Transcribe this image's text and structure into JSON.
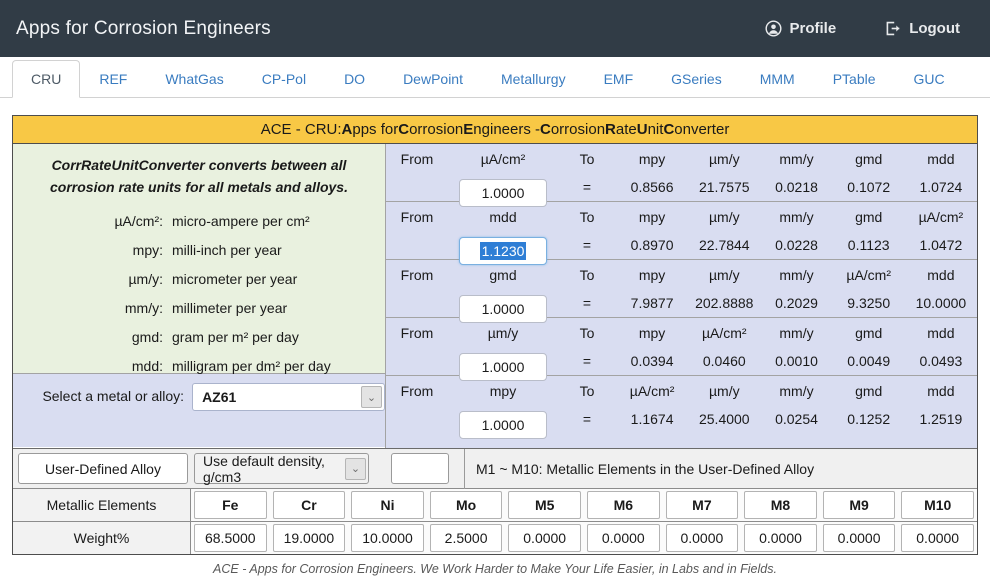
{
  "theme": {
    "header_bg": "#313c46",
    "tab_link_blue": "#3a7cc0",
    "title_gold": "#f8c845",
    "panel_green": "#e9f1df",
    "panel_lavender": "#d9ddf1",
    "selection_blue": "#2e7ed5",
    "focus_border": "#7ab0e0"
  },
  "header": {
    "app_title": "Apps for Corrosion Engineers",
    "profile_label": "Profile",
    "logout_label": "Logout"
  },
  "tabs": {
    "active": "CRU",
    "items": [
      "CRU",
      "REF",
      "WhatGas",
      "CP-Pol",
      "DO",
      "DewPoint",
      "Metallurgy",
      "EMF",
      "GSeries",
      "MMM",
      "PTable",
      "GUC"
    ]
  },
  "title_bar": {
    "segments": [
      {
        "t": "ACE - CRU: ",
        "b": false
      },
      {
        "t": "A",
        "b": true
      },
      {
        "t": "pps for ",
        "b": false
      },
      {
        "t": "C",
        "b": true
      },
      {
        "t": "orrosion ",
        "b": false
      },
      {
        "t": "E",
        "b": true
      },
      {
        "t": "ngineers - ",
        "b": false
      },
      {
        "t": "C",
        "b": true
      },
      {
        "t": "orrosion ",
        "b": false
      },
      {
        "t": "R",
        "b": true
      },
      {
        "t": "ate ",
        "b": false
      },
      {
        "t": "U",
        "b": true
      },
      {
        "t": "nit ",
        "b": false
      },
      {
        "t": "C",
        "b": true
      },
      {
        "t": "onverter",
        "b": false
      }
    ]
  },
  "left_panel": {
    "intro_line1": "CorrRateUnitConverter converts between all",
    "intro_line2": "corrosion rate units for all metals and alloys.",
    "definitions": [
      {
        "abbr": "µA/cm²:",
        "text": "micro-ampere per cm²"
      },
      {
        "abbr": "mpy:",
        "text": "milli-inch per year"
      },
      {
        "abbr": "µm/y:",
        "text": "micrometer per year"
      },
      {
        "abbr": "mm/y:",
        "text": "millimeter per year"
      },
      {
        "abbr": "gmd:",
        "text": "gram per m² per day"
      },
      {
        "abbr": "mdd:",
        "text": "milligram per dm² per day"
      }
    ]
  },
  "metal_selector": {
    "label": "Select a metal or alloy:",
    "value": "AZ61"
  },
  "converter": {
    "from_label": "From",
    "to_label": "To",
    "equals": "=",
    "rows": [
      {
        "from_unit": "µA/cm²",
        "value": "1.0000",
        "focused": false,
        "to_units": [
          "mpy",
          "µm/y",
          "mm/y",
          "gmd",
          "mdd"
        ],
        "results": [
          "0.8566",
          "21.7575",
          "0.0218",
          "0.1072",
          "1.0724"
        ]
      },
      {
        "from_unit": "mdd",
        "value": "1.1230",
        "focused": true,
        "to_units": [
          "mpy",
          "µm/y",
          "mm/y",
          "gmd",
          "µA/cm²"
        ],
        "results": [
          "0.8970",
          "22.7844",
          "0.0228",
          "0.1123",
          "1.0472"
        ]
      },
      {
        "from_unit": "gmd",
        "value": "1.0000",
        "focused": false,
        "to_units": [
          "mpy",
          "µm/y",
          "mm/y",
          "µA/cm²",
          "mdd"
        ],
        "results": [
          "7.9877",
          "202.8888",
          "0.2029",
          "9.3250",
          "10.0000"
        ]
      },
      {
        "from_unit": "µm/y",
        "value": "1.0000",
        "focused": false,
        "to_units": [
          "mpy",
          "µA/cm²",
          "mm/y",
          "gmd",
          "mdd"
        ],
        "results": [
          "0.0394",
          "0.0460",
          "0.0010",
          "0.0049",
          "0.0493"
        ]
      },
      {
        "from_unit": "mpy",
        "value": "1.0000",
        "focused": false,
        "to_units": [
          "µA/cm²",
          "µm/y",
          "mm/y",
          "gmd",
          "mdd"
        ],
        "results": [
          "1.1674",
          "25.4000",
          "0.0254",
          "0.1252",
          "1.2519"
        ]
      }
    ]
  },
  "user_defined": {
    "button_label": "User-Defined Alloy",
    "density_value": "Use default density, g/cm3",
    "input_value": "",
    "note": "M1 ~ M10:  Metallic Elements in the User-Defined Alloy"
  },
  "bottom": {
    "elements_label": "Metallic Elements",
    "weight_label": "Weight%",
    "elements": [
      "Fe",
      "Cr",
      "Ni",
      "Mo",
      "M5",
      "M6",
      "M7",
      "M8",
      "M9",
      "M10"
    ],
    "weights": [
      "68.5000",
      "19.0000",
      "10.0000",
      "2.5000",
      "0.0000",
      "0.0000",
      "0.0000",
      "0.0000",
      "0.0000",
      "0.0000"
    ]
  },
  "footer": {
    "text": "ACE - Apps for Corrosion Engineers. We Work Harder to Make Your Life Easier, in Labs and in Fields."
  }
}
